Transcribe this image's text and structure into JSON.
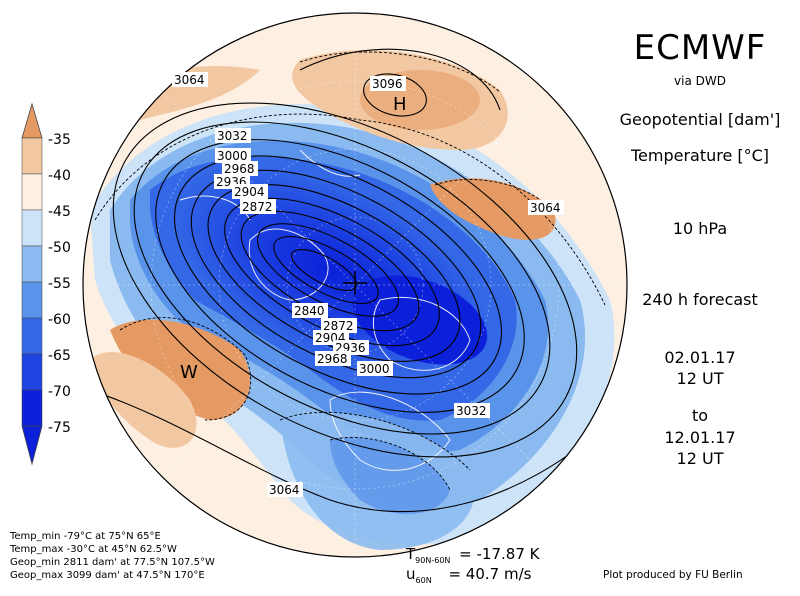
{
  "header": {
    "title": "ECMWF",
    "subtitle": "via DWD",
    "field1": "Geopotential [dam']",
    "field2": "Temperature [°C]",
    "level": "10 hPa",
    "forecast": "240 h forecast",
    "start_date": "02.01.17",
    "start_time": "12 UT",
    "to": "to",
    "end_date": "12.01.17",
    "end_time": "12 UT"
  },
  "colorbar": {
    "labels": [
      "-35",
      "-40",
      "-45",
      "-50",
      "-55",
      "-60",
      "-65",
      "-70",
      "-75"
    ],
    "colors": [
      "#e59a63",
      "#f2c8a2",
      "#fdf0e2",
      "#cde3f8",
      "#8bbaf0",
      "#5a93ea",
      "#3468e6",
      "#1e44e2",
      "#0b20d8"
    ]
  },
  "map": {
    "pressure_centers": [
      {
        "label": "H",
        "value": "3096"
      },
      {
        "label": "W"
      }
    ],
    "contour_labels": [
      "3064",
      "3032",
      "3000",
      "2968",
      "2936",
      "2904",
      "2872",
      "2840",
      "2872",
      "2904",
      "2936",
      "2968",
      "3000",
      "3064",
      "3032",
      "3064"
    ]
  },
  "stats": {
    "temp_min": "Temp_min  -79°C at 75°N 65°E",
    "temp_max": "Temp_max  -30°C at 45°N 62.5°W",
    "geop_min": "Geop_min  2811 dam' at 77.5°N 107.5°W",
    "geop_max": "Geop_max  3099 dam' at 47.5°N 170°E"
  },
  "footer": {
    "t_label": "T",
    "t_sub": "90N-60N",
    "t_value": "=  -17.87  K",
    "u_label": "u",
    "u_sub": "60N",
    "u_value": "=  40.7  m/s",
    "credit": "Plot produced by FU Berlin"
  }
}
